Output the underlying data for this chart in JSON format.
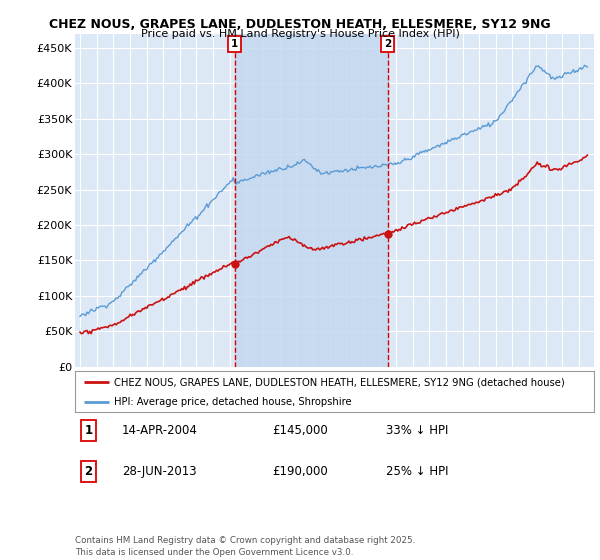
{
  "title_line1": "CHEZ NOUS, GRAPES LANE, DUDLESTON HEATH, ELLESMERE, SY12 9NG",
  "title_line2": "Price paid vs. HM Land Registry's House Price Index (HPI)",
  "background_color": "#ffffff",
  "plot_bg_color": "#dce8f5",
  "shade_color": "#c5d8f0",
  "grid_color": "#ffffff",
  "hpi_color": "#5b9bd5",
  "price_color": "#cc1111",
  "vline_color": "#dd0000",
  "ylim": [
    0,
    470000
  ],
  "yticks": [
    0,
    50000,
    100000,
    150000,
    200000,
    250000,
    300000,
    350000,
    400000,
    450000
  ],
  "ytick_labels": [
    "£0",
    "£50K",
    "£100K",
    "£150K",
    "£200K",
    "£250K",
    "£300K",
    "£350K",
    "£400K",
    "£450K"
  ],
  "marker1_date": 2004.29,
  "marker1_price_val": 145000,
  "marker1_text": "14-APR-2004",
  "marker1_price": "£145,000",
  "marker1_hpi": "33% ↓ HPI",
  "marker2_date": 2013.49,
  "marker2_price_val": 190000,
  "marker2_text": "28-JUN-2013",
  "marker2_price": "£190,000",
  "marker2_hpi": "25% ↓ HPI",
  "legend_label1": "CHEZ NOUS, GRAPES LANE, DUDLESTON HEATH, ELLESMERE, SY12 9NG (detached house)",
  "legend_label2": "HPI: Average price, detached house, Shropshire",
  "footnote": "Contains HM Land Registry data © Crown copyright and database right 2025.\nThis data is licensed under the Open Government Licence v3.0."
}
